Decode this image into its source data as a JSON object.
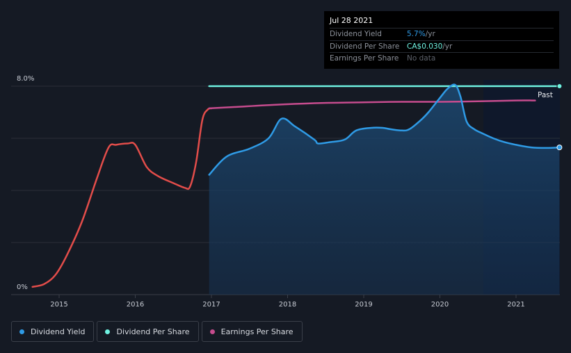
{
  "chart_data": {
    "type": "line",
    "x_ticks": [
      "2015",
      "2016",
      "2017",
      "2018",
      "2019",
      "2020",
      "2021"
    ],
    "y_tick_labels": [
      "8.0%",
      "0%"
    ],
    "ylim": [
      0,
      8
    ],
    "grid": true,
    "annotation": "Past",
    "series": [
      {
        "name": "Dividend Yield",
        "color": "#2f9be6",
        "points": [
          [
            2016.97,
            4.6
          ],
          [
            2017.2,
            5.3
          ],
          [
            2017.5,
            5.6
          ],
          [
            2017.75,
            6.0
          ],
          [
            2017.92,
            6.75
          ],
          [
            2018.1,
            6.45
          ],
          [
            2018.35,
            5.95
          ],
          [
            2018.4,
            5.8
          ],
          [
            2018.55,
            5.85
          ],
          [
            2018.75,
            5.95
          ],
          [
            2018.9,
            6.3
          ],
          [
            2019.1,
            6.4
          ],
          [
            2019.25,
            6.4
          ],
          [
            2019.35,
            6.35
          ],
          [
            2019.5,
            6.3
          ],
          [
            2019.6,
            6.35
          ],
          [
            2019.75,
            6.7
          ],
          [
            2019.85,
            7.0
          ],
          [
            2020.0,
            7.55
          ],
          [
            2020.1,
            7.9
          ],
          [
            2020.2,
            8.05
          ],
          [
            2020.27,
            7.6
          ],
          [
            2020.35,
            6.65
          ],
          [
            2020.45,
            6.35
          ],
          [
            2020.55,
            6.2
          ],
          [
            2020.7,
            6.0
          ],
          [
            2020.85,
            5.85
          ],
          [
            2021.0,
            5.75
          ],
          [
            2021.2,
            5.65
          ],
          [
            2021.4,
            5.63
          ],
          [
            2021.57,
            5.65
          ]
        ]
      },
      {
        "name": "Dividend Per Share",
        "color": "#6ff2e1",
        "points": [
          [
            2016.97,
            8.0
          ],
          [
            2021.57,
            8.0
          ]
        ]
      },
      {
        "name": "Earnings Per Share",
        "color": "#c64c8e",
        "points": [
          [
            2016.97,
            7.15
          ],
          [
            2017.3,
            7.2
          ],
          [
            2017.8,
            7.28
          ],
          [
            2018.4,
            7.35
          ],
          [
            2019.0,
            7.38
          ],
          [
            2019.5,
            7.4
          ],
          [
            2020.0,
            7.4
          ],
          [
            2020.5,
            7.42
          ],
          [
            2021.0,
            7.45
          ],
          [
            2021.25,
            7.45
          ]
        ]
      },
      {
        "name": "Earnings Per Share (earlier)",
        "color": "#e34d4a",
        "points": [
          [
            2014.65,
            0.3
          ],
          [
            2014.8,
            0.4
          ],
          [
            2014.95,
            0.75
          ],
          [
            2015.1,
            1.5
          ],
          [
            2015.3,
            2.8
          ],
          [
            2015.5,
            4.5
          ],
          [
            2015.65,
            5.65
          ],
          [
            2015.75,
            5.75
          ],
          [
            2015.9,
            5.8
          ],
          [
            2016.0,
            5.75
          ],
          [
            2016.15,
            4.9
          ],
          [
            2016.3,
            4.55
          ],
          [
            2016.5,
            4.28
          ],
          [
            2016.65,
            4.1
          ],
          [
            2016.72,
            4.15
          ],
          [
            2016.8,
            5.1
          ],
          [
            2016.88,
            6.7
          ],
          [
            2016.95,
            7.1
          ],
          [
            2017.0,
            7.15
          ]
        ]
      }
    ]
  },
  "tooltip": {
    "date": "Jul 28 2021",
    "rows": [
      {
        "label": "Dividend Yield",
        "value": "5.7%",
        "unit": " /yr"
      },
      {
        "label": "Dividend Per Share",
        "value": "CA$0.030",
        "unit": " /yr"
      },
      {
        "label": "Earnings Per Share",
        "value": "No data",
        "unit": ""
      }
    ]
  },
  "legend": [
    {
      "label": "Dividend Yield",
      "color": "#2f9be6"
    },
    {
      "label": "Dividend Per Share",
      "color": "#6ff2e1"
    },
    {
      "label": "Earnings Per Share",
      "color": "#c64c8e"
    }
  ]
}
